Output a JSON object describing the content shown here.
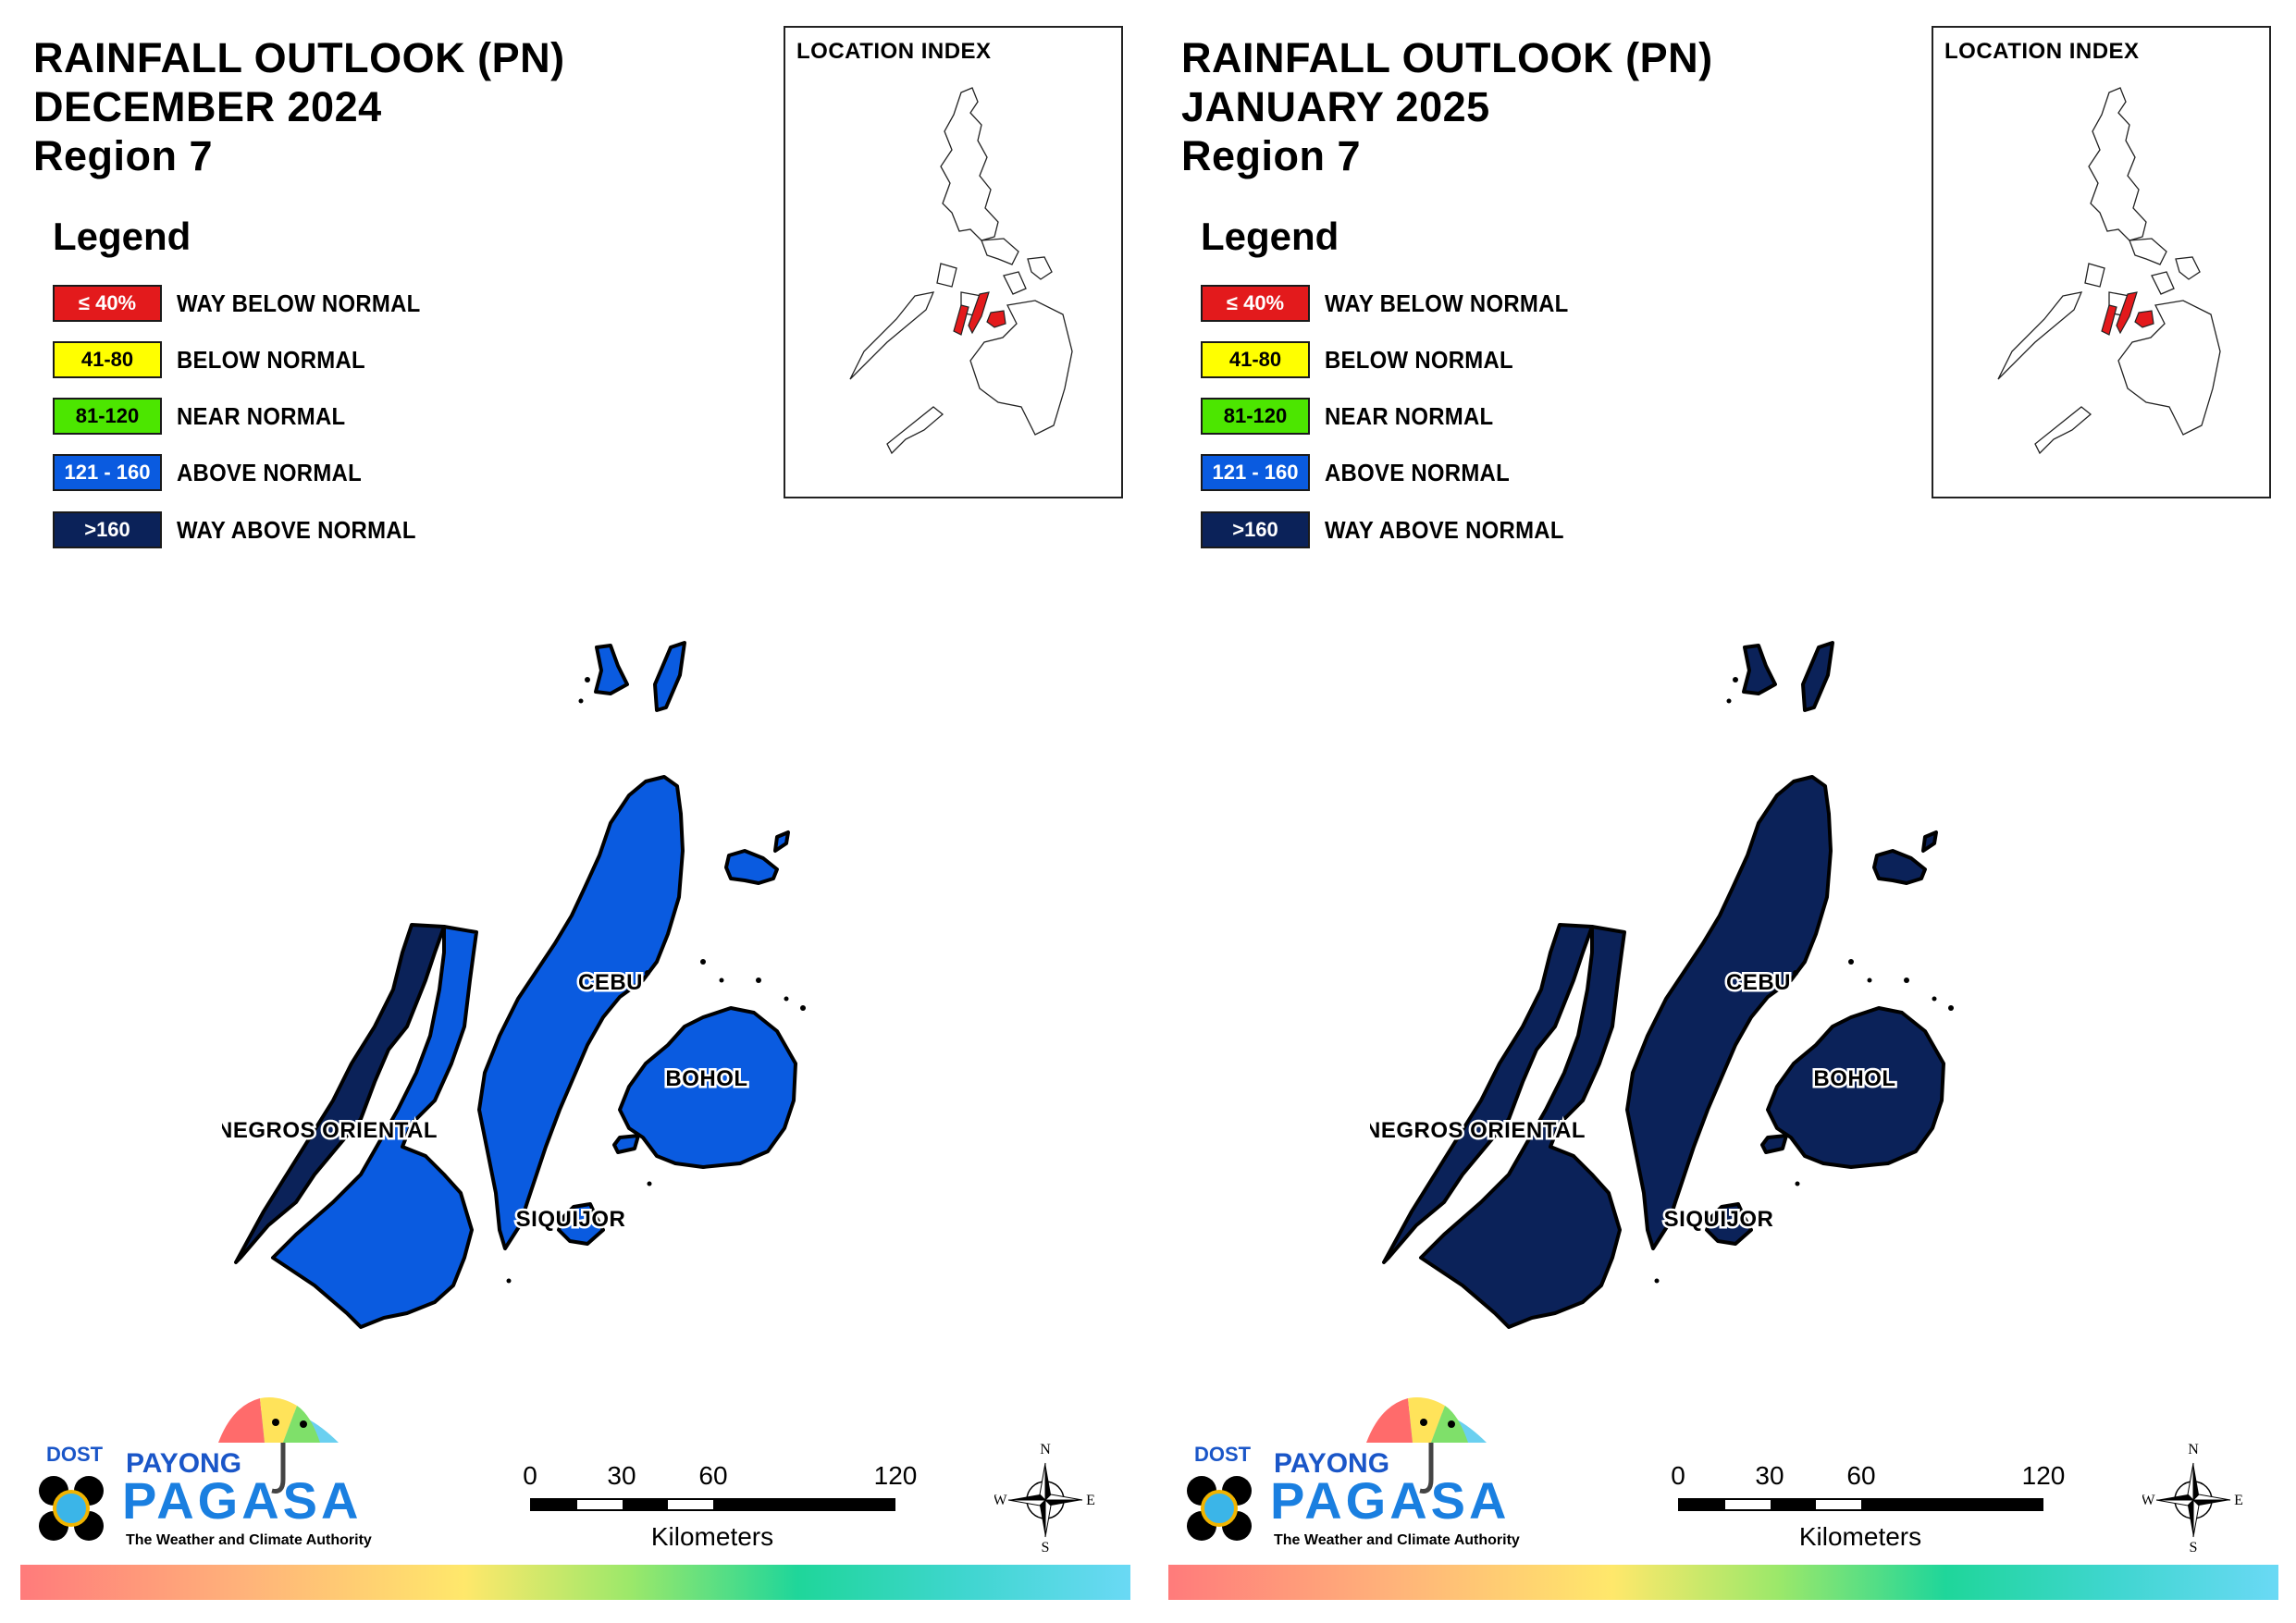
{
  "panels": [
    {
      "title_line1": "RAINFALL OUTLOOK (PN)",
      "title_line2": "DECEMBER 2024",
      "title_line3": "Region 7",
      "provinces": {
        "negros_oriental": "NEGROS ORIENTAL",
        "cebu": "CEBU",
        "bohol": "BOHOL",
        "siquijor": "SIQUIJOR"
      },
      "fill_categories": {
        "cebu": "ABOVE NORMAL",
        "bohol": "ABOVE NORMAL",
        "siquijor": "ABOVE NORMAL",
        "negros_oriental_south": "ABOVE NORMAL",
        "negros_oriental_north": "WAY ABOVE NORMAL"
      }
    },
    {
      "title_line1": "RAINFALL OUTLOOK (PN)",
      "title_line2": "JANUARY 2025",
      "title_line3": "Region 7",
      "provinces": {
        "negros_oriental": "NEGROS ORIENTAL",
        "cebu": "CEBU",
        "bohol": "BOHOL",
        "siquijor": "SIQUIJOR"
      },
      "fill_categories": {
        "cebu": "WAY ABOVE NORMAL",
        "bohol": "WAY ABOVE NORMAL",
        "siquijor": "WAY ABOVE NORMAL",
        "negros_oriental_south": "WAY ABOVE NORMAL",
        "negros_oriental_north": "WAY ABOVE NORMAL"
      }
    }
  ],
  "legend": {
    "title": "Legend",
    "items": [
      {
        "range": "≤ 40%",
        "label": "WAY BELOW NORMAL",
        "color": "#e31a1c",
        "text_color": "#ffffff"
      },
      {
        "range": "41-80",
        "label": "BELOW NORMAL",
        "color": "#ffff00",
        "text_color": "#000000"
      },
      {
        "range": "81-120",
        "label": "NEAR NORMAL",
        "color": "#4ce600",
        "text_color": "#000000"
      },
      {
        "range": "121 - 160",
        "label": "ABOVE NORMAL",
        "color": "#0a5be0",
        "text_color": "#ffffff"
      },
      {
        "range": ">160",
        "label": "WAY ABOVE NORMAL",
        "color": "#0b2259",
        "text_color": "#ffffff"
      }
    ]
  },
  "location_index": {
    "title": "LOCATION INDEX",
    "highlight_color": "#e31a1c"
  },
  "scale_bar": {
    "ticks": [
      "0",
      "30",
      "60",
      "120"
    ],
    "unit": "Kilometers"
  },
  "compass": {
    "n": "N",
    "e": "E",
    "s": "S",
    "w": "W"
  },
  "logo": {
    "dost": "DOST",
    "payong": "PAYONG",
    "pagasa": "PAGASA",
    "tagline": "The Weather and Climate Authority"
  }
}
